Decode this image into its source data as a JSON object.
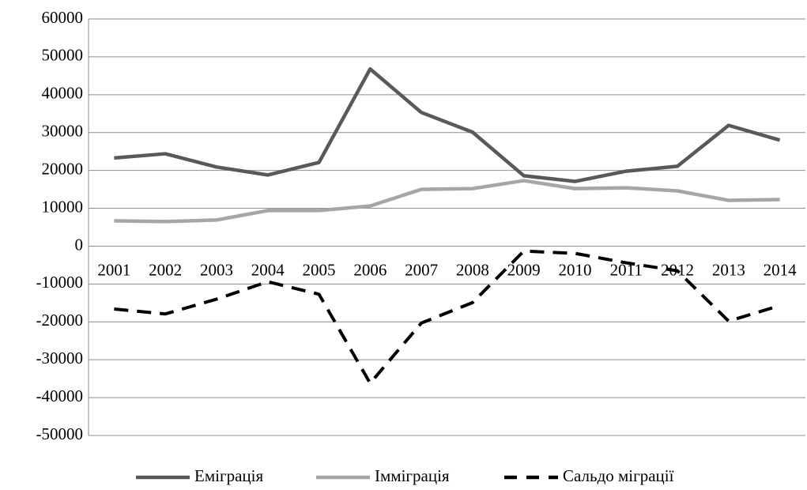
{
  "chart_data": {
    "type": "line",
    "categories": [
      "2001",
      "2002",
      "2003",
      "2004",
      "2005",
      "2006",
      "2007",
      "2008",
      "2009",
      "2010",
      "2011",
      "2012",
      "2013",
      "2014"
    ],
    "series": [
      {
        "name": "Еміграція",
        "color": "#595959",
        "style": "solid",
        "values": [
          23300,
          24400,
          20900,
          18800,
          22100,
          46800,
          35300,
          30100,
          18600,
          17100,
          19800,
          21100,
          31900,
          28000
        ]
      },
      {
        "name": "Імміграція",
        "color": "#a6a6a6",
        "style": "solid",
        "values": [
          6700,
          6500,
          6900,
          9400,
          9400,
          10600,
          15000,
          15200,
          17300,
          15200,
          15400,
          14600,
          12100,
          12300
        ]
      },
      {
        "name": "Сальдо міграції",
        "color": "#000000",
        "style": "dashed",
        "values": [
          -16600,
          -17900,
          -14000,
          -9400,
          -12700,
          -36200,
          -20300,
          -14900,
          -1300,
          -1900,
          -4400,
          -6500,
          -19800,
          -15700
        ]
      }
    ],
    "ylim": [
      -50000,
      60000
    ],
    "yticks": [
      -50000,
      -40000,
      -30000,
      -20000,
      -10000,
      0,
      10000,
      20000,
      30000,
      40000,
      50000,
      60000
    ],
    "grid": true,
    "legend": "bottom"
  }
}
